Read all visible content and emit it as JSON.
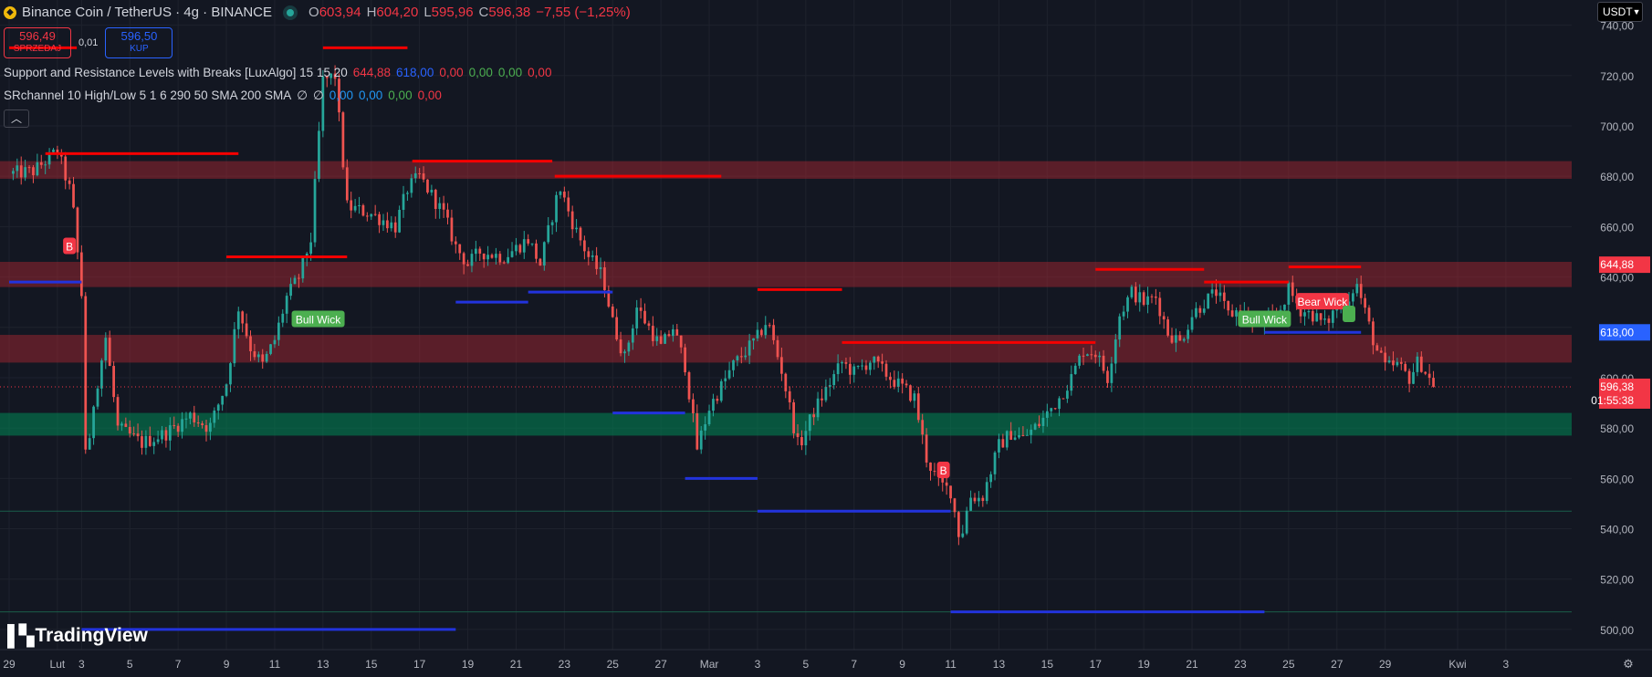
{
  "header": {
    "symbol_icon": "binance-coin-icon",
    "title": "Binance Coin / TetherUS · 4g · BINANCE",
    "ohlc": [
      {
        "label": "O",
        "value": "603,94"
      },
      {
        "label": "H",
        "value": "604,20"
      },
      {
        "label": "L",
        "value": "595,96"
      },
      {
        "label": "C",
        "value": "596,38"
      }
    ],
    "change": "−7,55 (−1,25%)"
  },
  "trade": {
    "sell_price": "596,49",
    "sell_label": "SPRZEDAJ",
    "spread": "0,01",
    "buy_price": "596,50",
    "buy_label": "KUP"
  },
  "indicators": [
    {
      "name": "Support and Resistance Levels with Breaks [LuxAlgo] 15 15 20",
      "values": [
        {
          "v": "644,88",
          "color": "#f23645"
        },
        {
          "v": "618,00",
          "color": "#2962ff"
        },
        {
          "v": "0,00",
          "color": "#f23645"
        },
        {
          "v": "0,00",
          "color": "#4caf50"
        },
        {
          "v": "0,00",
          "color": "#4caf50"
        },
        {
          "v": "0,00",
          "color": "#f23645"
        }
      ]
    },
    {
      "name": "SRchannel 10 High/Low 5 1 6 290 50 SMA 200 SMA",
      "values": [
        {
          "v": "∅",
          "color": "#d1d4dc"
        },
        {
          "v": "∅",
          "color": "#d1d4dc"
        },
        {
          "v": "0,00",
          "color": "#2196f3"
        },
        {
          "v": "0,00",
          "color": "#2196f3"
        },
        {
          "v": "0,00",
          "color": "#4caf50"
        },
        {
          "v": "0,00",
          "color": "#f23645"
        }
      ]
    }
  ],
  "collapse_icon": "chevron-up-icon",
  "currency": "USDT",
  "watermark": "TradingView",
  "chart_data": {
    "type": "candlestick",
    "ylim": [
      492,
      750
    ],
    "yticks": [
      500,
      520,
      540,
      560,
      580,
      600,
      620,
      640,
      660,
      680,
      700,
      720,
      740
    ],
    "y_tick_labels": [
      "500,00",
      "520,00",
      "540,00",
      "560,00",
      "580,00",
      "600,00",
      "620,00",
      "640,00",
      "660,00",
      "680,00",
      "700,00",
      "720,00",
      "740,00"
    ],
    "x_ticks": [
      {
        "label": "29",
        "day": 0
      },
      {
        "label": "Lut",
        "day": 2
      },
      {
        "label": "3",
        "day": 3
      },
      {
        "label": "5",
        "day": 5
      },
      {
        "label": "7",
        "day": 7
      },
      {
        "label": "9",
        "day": 9
      },
      {
        "label": "11",
        "day": 11
      },
      {
        "label": "13",
        "day": 13
      },
      {
        "label": "15",
        "day": 15
      },
      {
        "label": "17",
        "day": 17
      },
      {
        "label": "19",
        "day": 19
      },
      {
        "label": "21",
        "day": 21
      },
      {
        "label": "23",
        "day": 23
      },
      {
        "label": "25",
        "day": 25
      },
      {
        "label": "27",
        "day": 27
      },
      {
        "label": "Mar",
        "day": 29
      },
      {
        "label": "3",
        "day": 31
      },
      {
        "label": "5",
        "day": 33
      },
      {
        "label": "7",
        "day": 35
      },
      {
        "label": "9",
        "day": 37
      },
      {
        "label": "11",
        "day": 39
      },
      {
        "label": "13",
        "day": 41
      },
      {
        "label": "15",
        "day": 43
      },
      {
        "label": "17",
        "day": 45
      },
      {
        "label": "19",
        "day": 47
      },
      {
        "label": "21",
        "day": 49
      },
      {
        "label": "23",
        "day": 51
      },
      {
        "label": "25",
        "day": 53
      },
      {
        "label": "27",
        "day": 55
      },
      {
        "label": "29",
        "day": 57
      },
      {
        "label": "Kwi",
        "day": 60
      },
      {
        "label": "3",
        "day": 62
      }
    ],
    "last_price": {
      "value": 596.38,
      "label": "596,38",
      "countdown": "01:55:38"
    },
    "price_tags": [
      {
        "value": 644.88,
        "label": "644,88",
        "color": "#f23645"
      },
      {
        "value": 618.0,
        "label": "618,00",
        "color": "#2962ff"
      }
    ],
    "path_points": [
      [
        0,
        681
      ],
      [
        1.0,
        682
      ],
      [
        2.0,
        690
      ],
      [
        2.6,
        672
      ],
      [
        3.0,
        633
      ],
      [
        3.2,
        560
      ],
      [
        3.5,
        590
      ],
      [
        4.0,
        616
      ],
      [
        4.5,
        580
      ],
      [
        5.5,
        574
      ],
      [
        6.5,
        578
      ],
      [
        7.5,
        585
      ],
      [
        8.3,
        580
      ],
      [
        9.0,
        598
      ],
      [
        9.5,
        628
      ],
      [
        10.0,
        612
      ],
      [
        10.5,
        605
      ],
      [
        11.0,
        615
      ],
      [
        11.5,
        632
      ],
      [
        12.0,
        640
      ],
      [
        12.5,
        655
      ],
      [
        13.0,
        718
      ],
      [
        13.5,
        720
      ],
      [
        14.0,
        668
      ],
      [
        15.0,
        665
      ],
      [
        16.0,
        660
      ],
      [
        16.5,
        675
      ],
      [
        17.0,
        680
      ],
      [
        18.0,
        665
      ],
      [
        18.5,
        652
      ],
      [
        19.0,
        645
      ],
      [
        19.5,
        650
      ],
      [
        20.5,
        648
      ],
      [
        21.5,
        655
      ],
      [
        22.0,
        645
      ],
      [
        22.8,
        676
      ],
      [
        23.4,
        660
      ],
      [
        24.0,
        648
      ],
      [
        24.6,
        640
      ],
      [
        25.0,
        622
      ],
      [
        25.5,
        608
      ],
      [
        26.0,
        628
      ],
      [
        26.5,
        620
      ],
      [
        27.0,
        612
      ],
      [
        27.5,
        620
      ],
      [
        28.0,
        605
      ],
      [
        28.5,
        572
      ],
      [
        29.0,
        588
      ],
      [
        30.0,
        605
      ],
      [
        31.0,
        616
      ],
      [
        31.4,
        623
      ],
      [
        32.0,
        603
      ],
      [
        32.7,
        572
      ],
      [
        33.3,
        586
      ],
      [
        34.0,
        598
      ],
      [
        34.5,
        606
      ],
      [
        35.0,
        602
      ],
      [
        35.7,
        607
      ],
      [
        36.5,
        600
      ],
      [
        37.5,
        592
      ],
      [
        38.0,
        568
      ],
      [
        38.5,
        558
      ],
      [
        39.0,
        555
      ],
      [
        39.4,
        535
      ],
      [
        39.8,
        553
      ],
      [
        40.3,
        552
      ],
      [
        41.0,
        573
      ],
      [
        41.5,
        578
      ],
      [
        42.0,
        576
      ],
      [
        42.7,
        582
      ],
      [
        43.5,
        592
      ],
      [
        44.0,
        600
      ],
      [
        44.5,
        611
      ],
      [
        45.0,
        610
      ],
      [
        45.5,
        600
      ],
      [
        46.0,
        625
      ],
      [
        46.5,
        634
      ],
      [
        47.0,
        630
      ],
      [
        47.5,
        632
      ],
      [
        48.0,
        618
      ],
      [
        48.5,
        614
      ],
      [
        49.0,
        625
      ],
      [
        49.5,
        630
      ],
      [
        50.0,
        634
      ],
      [
        50.5,
        625
      ],
      [
        51.0,
        627
      ],
      [
        51.5,
        621
      ],
      [
        52.0,
        622
      ],
      [
        52.5,
        624
      ],
      [
        53.0,
        635
      ],
      [
        53.5,
        627
      ],
      [
        54.0,
        625
      ],
      [
        54.5,
        621
      ],
      [
        55.0,
        628
      ],
      [
        55.5,
        632
      ],
      [
        55.8,
        638
      ],
      [
        56.2,
        625
      ],
      [
        56.6,
        612
      ],
      [
        57.0,
        604
      ],
      [
        57.5,
        605
      ],
      [
        58.0,
        600
      ],
      [
        58.4,
        607
      ],
      [
        58.8,
        600
      ],
      [
        59.0,
        596.4
      ]
    ],
    "zones": [
      {
        "type": "resistance",
        "low": 679,
        "high": 686
      },
      {
        "type": "resistance",
        "low": 636,
        "high": 646
      },
      {
        "type": "resistance",
        "low": 606,
        "high": 617
      },
      {
        "type": "support",
        "low": 577,
        "high": 586
      }
    ],
    "resistance_lines": [
      {
        "start": 1.5,
        "end": 9.5,
        "y": 689
      },
      {
        "start": 13.0,
        "end": 16.5,
        "y": 731
      },
      {
        "start": 16.7,
        "end": 22.5,
        "y": 686
      },
      {
        "start": 22.6,
        "end": 29.5,
        "y": 680
      },
      {
        "start": 9.0,
        "end": 14.0,
        "y": 648
      },
      {
        "start": 31.0,
        "end": 34.5,
        "y": 635
      },
      {
        "start": 34.5,
        "end": 45.0,
        "y": 614
      },
      {
        "start": 45.0,
        "end": 49.5,
        "y": 643
      },
      {
        "start": 49.5,
        "end": 53.0,
        "y": 638
      },
      {
        "start": 53.0,
        "end": 56.0,
        "y": 644
      },
      {
        "start": 0,
        "end": 2.8,
        "y": 731
      }
    ],
    "support_lines": [
      {
        "start": 0,
        "end": 3.0,
        "y": 638
      },
      {
        "start": 3.0,
        "end": 18.5,
        "y": 500
      },
      {
        "start": 18.5,
        "end": 21.5,
        "y": 630
      },
      {
        "start": 21.5,
        "end": 25.0,
        "y": 634
      },
      {
        "start": 25.0,
        "end": 28.0,
        "y": 586
      },
      {
        "start": 28.0,
        "end": 31.0,
        "y": 560
      },
      {
        "start": 31.0,
        "end": 39.0,
        "y": 547
      },
      {
        "start": 39.0,
        "end": 52.0,
        "y": 507
      },
      {
        "start": 52.0,
        "end": 56.0,
        "y": 618
      }
    ],
    "thin_lines": [
      {
        "y": 547,
        "color": "#1b5e4a"
      },
      {
        "y": 507,
        "color": "#1b5e4a"
      }
    ],
    "signals": [
      {
        "day": 2.5,
        "price": 652,
        "label": "B",
        "type": "bear"
      },
      {
        "day": 38.7,
        "price": 563,
        "label": "B",
        "type": "bear"
      },
      {
        "day": 12.8,
        "price": 623,
        "label": "Bull Wick",
        "type": "bull"
      },
      {
        "day": 52.0,
        "price": 623,
        "label": "Bull Wick",
        "type": "bull"
      },
      {
        "day": 54.4,
        "price": 630,
        "label": "Bear Wick",
        "type": "bear"
      },
      {
        "day": 55.5,
        "price": 625,
        "label": "",
        "type": "bull"
      }
    ],
    "colors": {
      "up": "#26a69a",
      "down": "#ef5350",
      "resistance_line": "#f50000",
      "support_line": "#2233dd",
      "zone_resistance": "rgba(178,40,51,0.45)",
      "zone_support": "rgba(0,137,86,0.55)",
      "grid": "#1e222d",
      "axis_text": "#b2b5be"
    }
  }
}
